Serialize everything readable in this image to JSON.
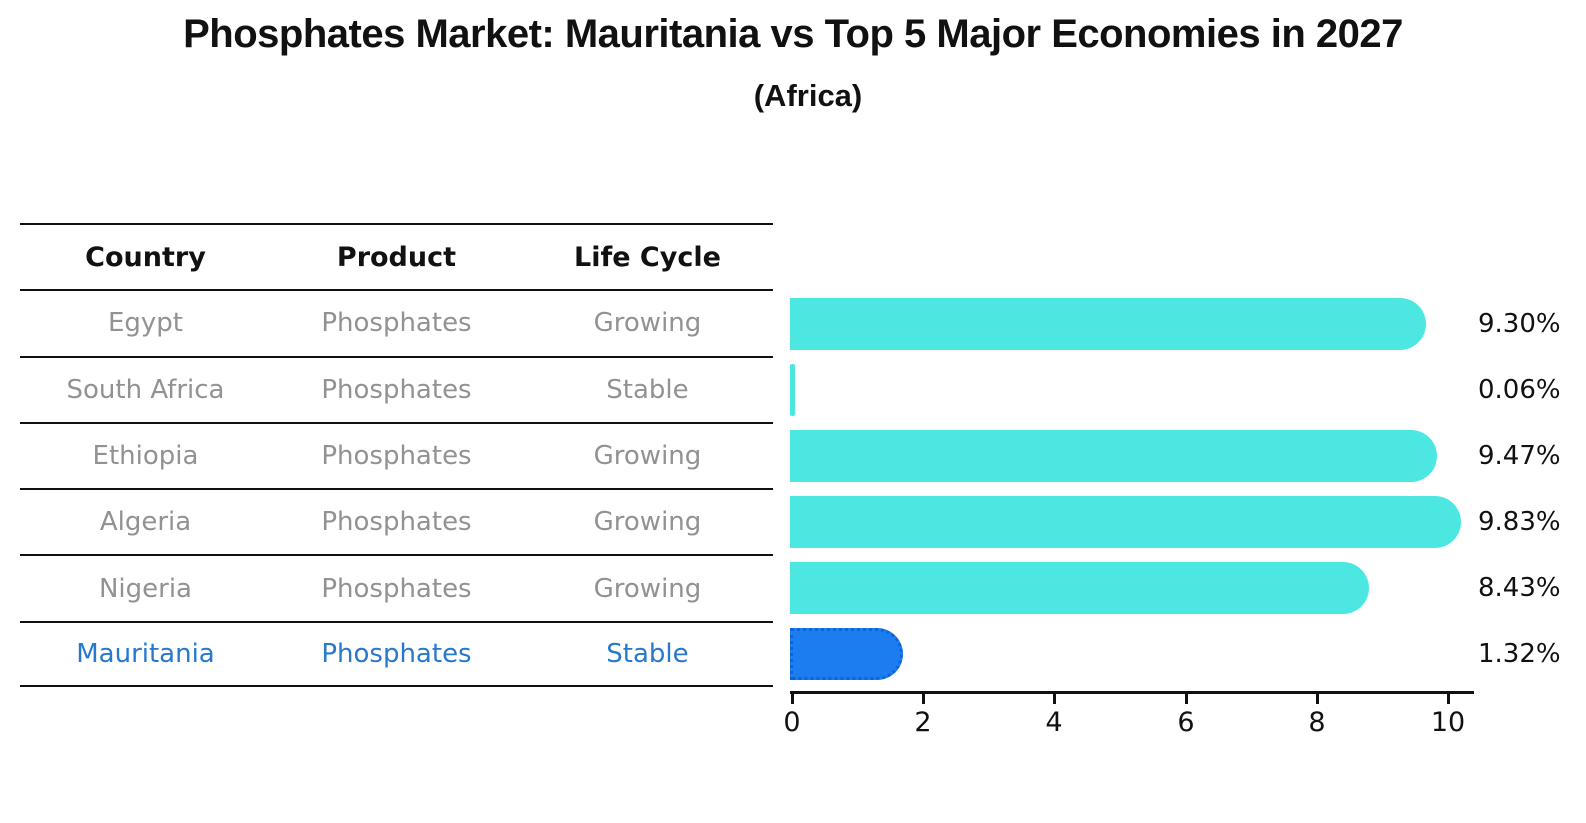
{
  "header": {
    "title": "Phosphates Market: Mauritania vs Top 5 Major Economies in 2027",
    "subtitle": "(Africa)"
  },
  "table": {
    "columns": [
      "Country",
      "Product",
      "Life Cycle"
    ],
    "rows": [
      {
        "country": "Egypt",
        "product": "Phosphates",
        "life_cycle": "Growing",
        "highlighted": false
      },
      {
        "country": "South Africa",
        "product": "Phosphates",
        "life_cycle": "Stable",
        "highlighted": false
      },
      {
        "country": "Ethiopia",
        "product": "Phosphates",
        "life_cycle": "Growing",
        "highlighted": false
      },
      {
        "country": "Algeria",
        "product": "Phosphates",
        "life_cycle": "Growing",
        "highlighted": false
      },
      {
        "country": "Nigeria",
        "product": "Phosphates",
        "life_cycle": "Growing",
        "highlighted": false
      },
      {
        "country": "Mauritania",
        "product": "Phosphates",
        "life_cycle": "Stable",
        "highlighted": true
      }
    ]
  },
  "chart_data": {
    "type": "bar",
    "orientation": "horizontal",
    "title": "Phosphates Market: Mauritania vs Top 5 Major Economies in 2027",
    "subtitle": "(Africa)",
    "categories": [
      "Egypt",
      "South Africa",
      "Ethiopia",
      "Algeria",
      "Nigeria",
      "Mauritania"
    ],
    "values": [
      9.3,
      0.06,
      9.47,
      9.83,
      8.43,
      1.32
    ],
    "value_labels": [
      "9.30%",
      "0.06%",
      "9.47%",
      "9.83%",
      "8.43%",
      "1.32%"
    ],
    "highlight_index": 5,
    "xlabel": "",
    "ylabel": "",
    "xlim": [
      0,
      10.4
    ],
    "x_ticks": [
      "0",
      "2",
      "4",
      "6",
      "8",
      "10"
    ],
    "grid": false,
    "legend": false,
    "colors": {
      "bar_default": "#4DE7E1",
      "bar_highlight": "#1C7DF0",
      "highlight_text": "#2878CE",
      "table_text": "#929292",
      "axis_text": "#111111",
      "background": "#FFFFFF"
    }
  }
}
